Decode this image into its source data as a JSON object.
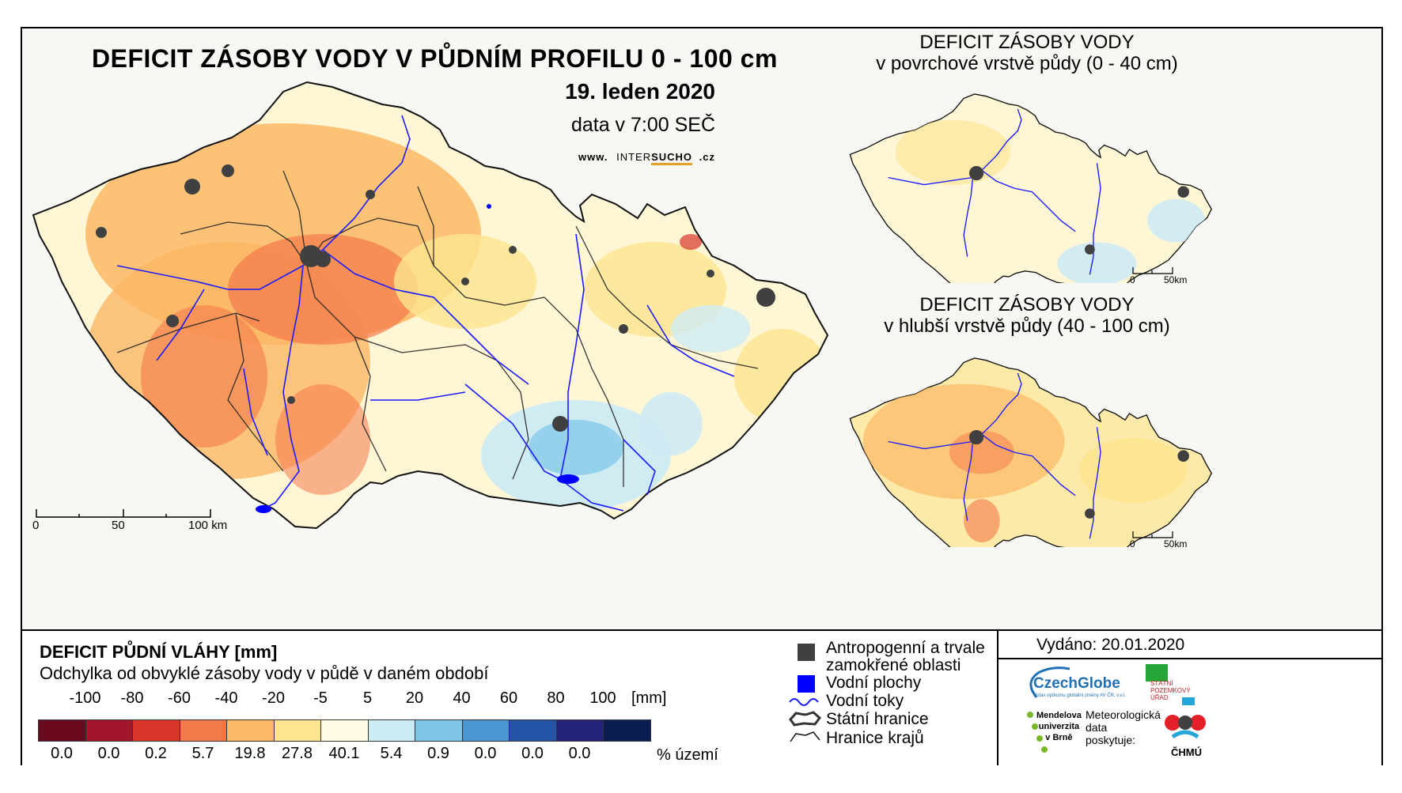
{
  "main_title": "DEFICIT ZÁSOBY VODY V PŮDNÍM PROFILU 0 - 100 cm",
  "date": "19. leden 2020",
  "data_time": "data v 7:00 SEČ",
  "website": {
    "prefix": "www.",
    "brand_a": "INTER",
    "brand_b": "SUCHO",
    "suffix": ".cz"
  },
  "main_scale": {
    "ticks": [
      "0",
      "50",
      "100 km"
    ]
  },
  "inset_top": {
    "title_line1": "DEFICIT ZÁSOBY VODY",
    "title_line2": "v povrchové vrstvě půdy (0 - 40 cm)",
    "scale": [
      "0",
      "50km"
    ]
  },
  "inset_bottom": {
    "title_line1": "DEFICIT ZÁSOBY VODY",
    "title_line2": "v hlubší vrstvě půdy (40 - 100 cm)",
    "scale": [
      "0",
      "50km"
    ]
  },
  "legend": {
    "title": "DEFICIT PŮDNÍ VLÁHY [mm]",
    "subtitle": "Odchylka od obvyklé zásoby vody v půdě v daném období",
    "boundaries": [
      "-100",
      "-80",
      "-60",
      "-40",
      "-20",
      "-5",
      "5",
      "20",
      "40",
      "60",
      "80",
      "100"
    ],
    "unit": "[mm]",
    "classes": [
      {
        "color": "#6b0a1e",
        "pct": "0.0"
      },
      {
        "color": "#a3152a",
        "pct": "0.0"
      },
      {
        "color": "#d9352b",
        "pct": "0.2"
      },
      {
        "color": "#f4794a",
        "pct": "5.7"
      },
      {
        "color": "#fbb865",
        "pct": "19.8"
      },
      {
        "color": "#fde58f",
        "pct": "27.8"
      },
      {
        "color": "#fffbe2",
        "pct": "40.1"
      },
      {
        "color": "#cdebf4",
        "pct": "5.4"
      },
      {
        "color": "#7ec6e8",
        "pct": "0.9"
      },
      {
        "color": "#4a95d2",
        "pct": "0.0"
      },
      {
        "color": "#2553a8",
        "pct": "0.0"
      },
      {
        "color": "#24237a",
        "pct": "0.0"
      },
      {
        "color": "#0b1e52",
        "pct": ""
      }
    ],
    "pct_label": "% území"
  },
  "symbols": {
    "urban": "Antropogenní a trvale",
    "urban2": "zamokřené oblasti",
    "water": "Vodní plochy",
    "rivers": "Vodní toky",
    "border": "Státní hranice",
    "regions": "Hranice krajů"
  },
  "issued": "Vydáno: 20.01.2020",
  "logos": {
    "czechglobe": "CzechGlobe",
    "czechglobe_sub": "Ústav výzkumu globální změny AV ČR, v.v.i.",
    "spu": [
      "STÁTNÍ",
      "POZEMKOVÝ",
      "ÚŘAD"
    ],
    "mendel": [
      "Mendelova",
      "univerzita",
      "v Brně"
    ],
    "meteo": [
      "Meteorologická",
      "data",
      "poskytuje:"
    ],
    "chmu": "ČHMÚ"
  },
  "colors": {
    "urban": "#404040",
    "water": "#0000ff",
    "river": "#1a1aff",
    "region_border": "#222222"
  }
}
